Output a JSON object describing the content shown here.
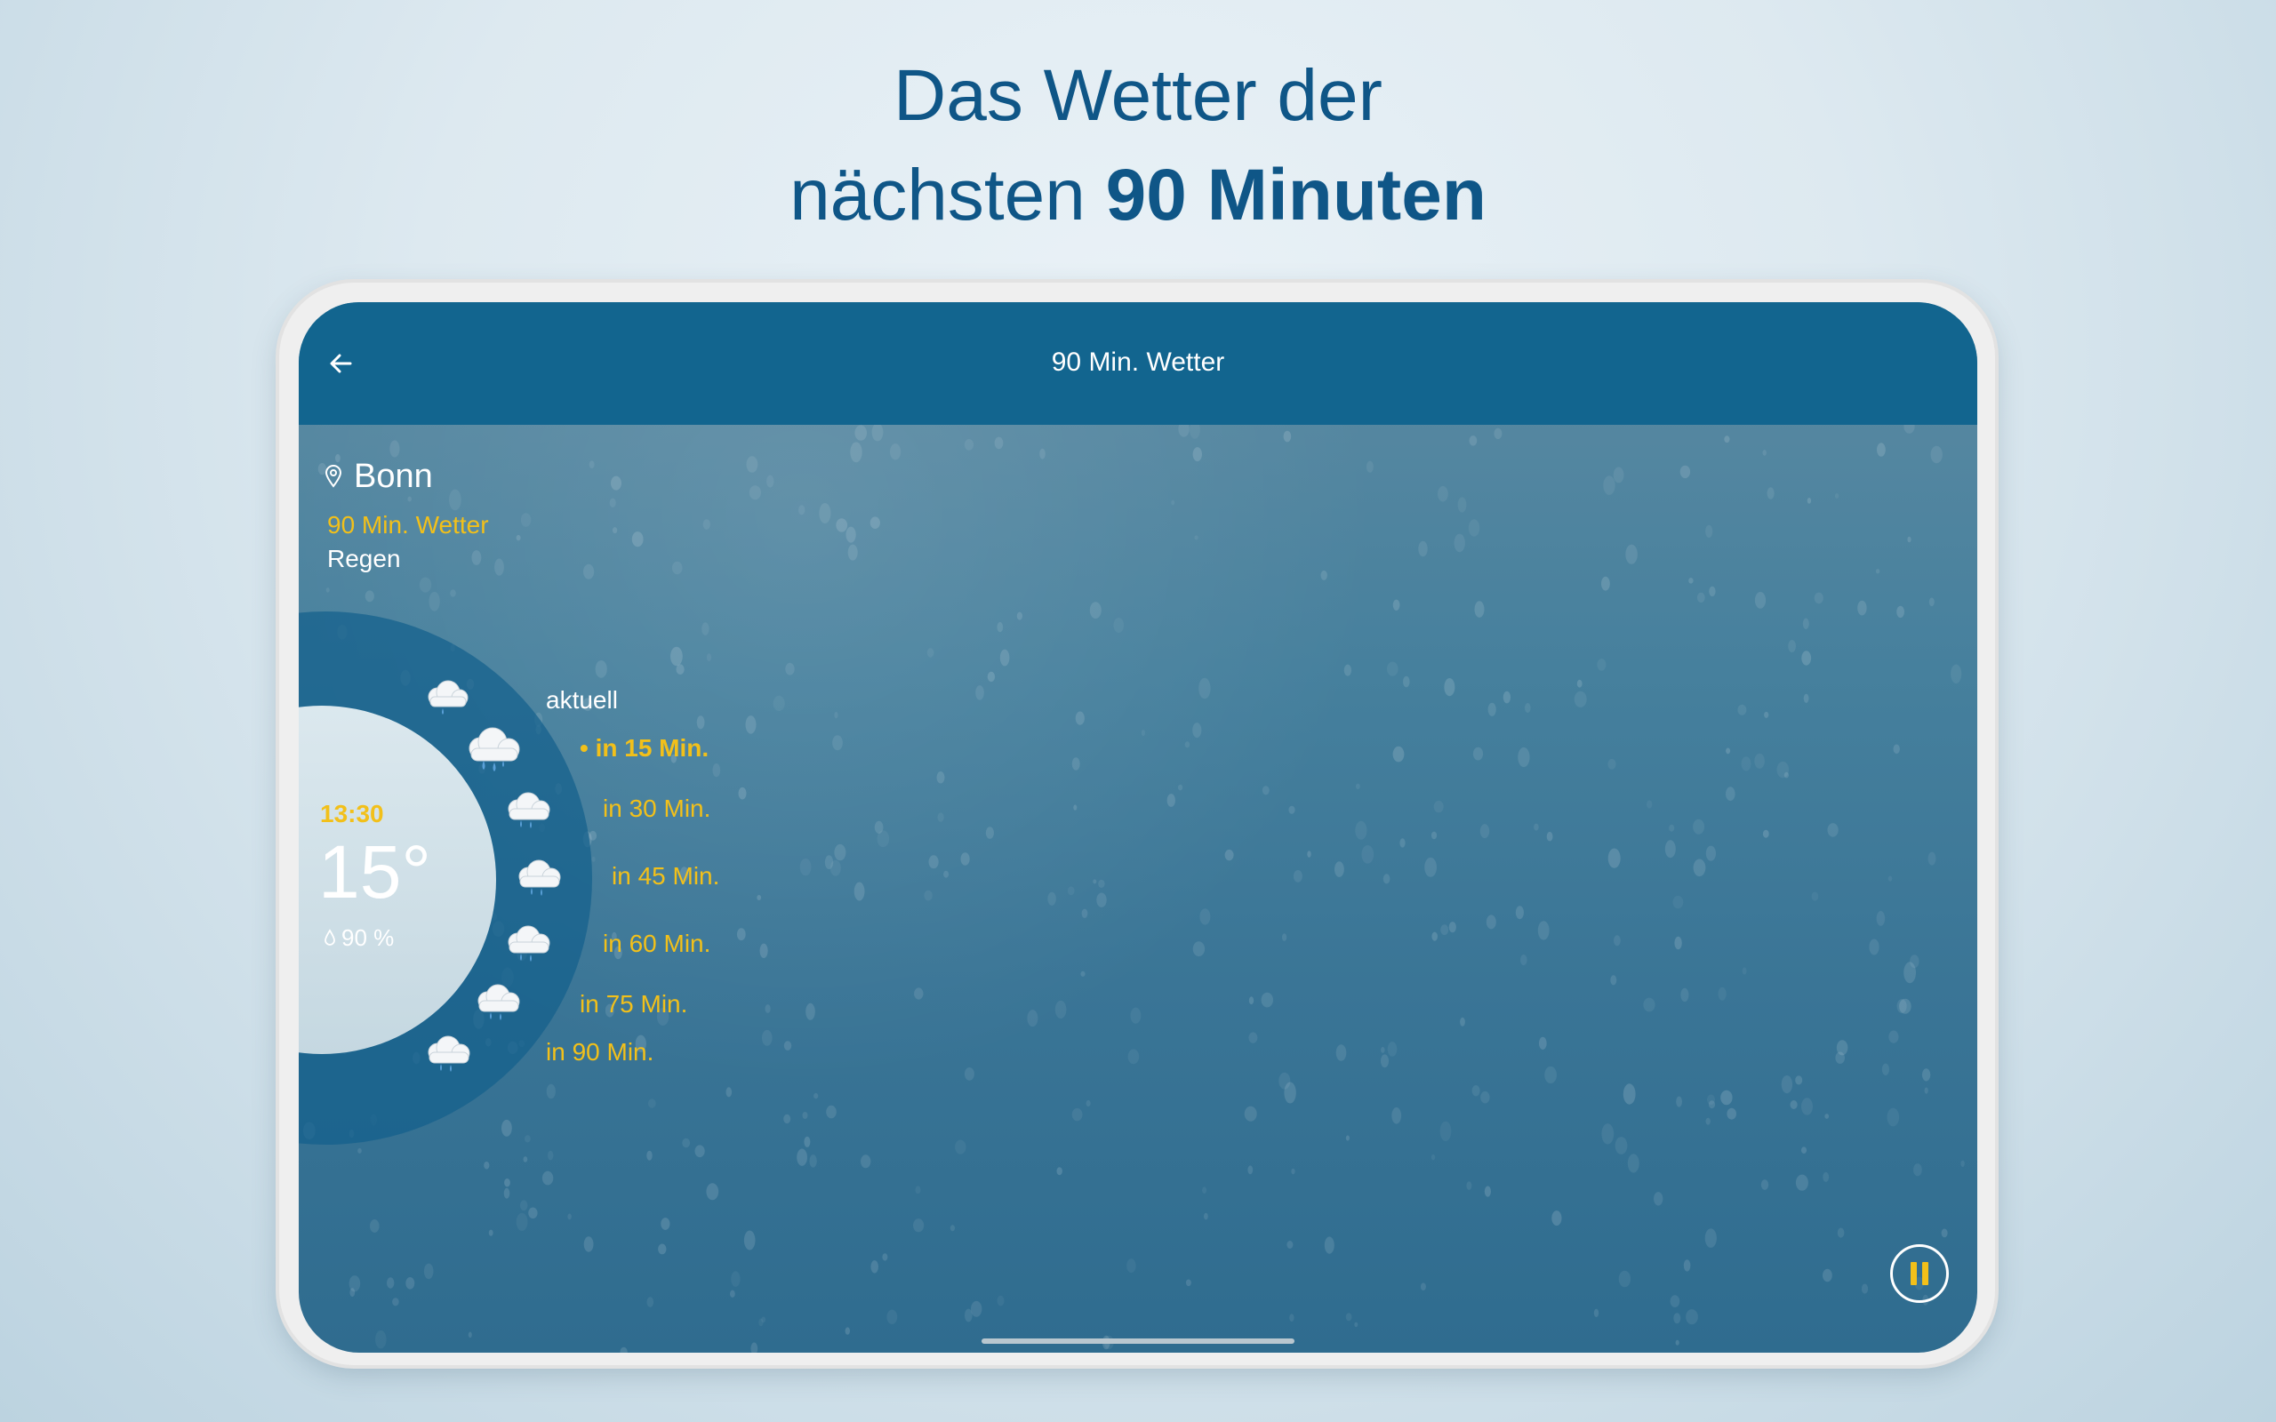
{
  "headline": {
    "line1": "Das Wetter der",
    "line2_regular": "nächsten ",
    "line2_bold": "90 Minuten"
  },
  "appbar": {
    "back_icon": "arrow-left-icon",
    "title": "90 Min. Wetter"
  },
  "location": {
    "icon": "map-pin-icon",
    "city": "Bonn",
    "product": "90 Min. Wetter",
    "condition": "Regen"
  },
  "current": {
    "time": "13:30",
    "temperature": "15°",
    "humidity": "90 %",
    "humidity_icon": "water-drop-icon"
  },
  "timeline": [
    {
      "label": "aktuell",
      "icon": "cloud-light-rain-icon"
    },
    {
      "label": "• in 15 Min.",
      "icon": "cloud-heavy-rain-icon"
    },
    {
      "label": "in 30 Min.",
      "icon": "cloud-rain-icon"
    },
    {
      "label": "in 45 Min.",
      "icon": "cloud-rain-icon"
    },
    {
      "label": "in 60 Min.",
      "icon": "cloud-rain-icon"
    },
    {
      "label": "in 75 Min.",
      "icon": "cloud-rain-icon"
    },
    {
      "label": "in 90 Min.",
      "icon": "cloud-rain-icon"
    }
  ],
  "controls": {
    "pause_icon": "pause-icon"
  },
  "colors": {
    "headline": "#0f5687",
    "appbar": "#12658f",
    "accent_yellow": "#f2c01a",
    "ring": "#145f8c"
  }
}
